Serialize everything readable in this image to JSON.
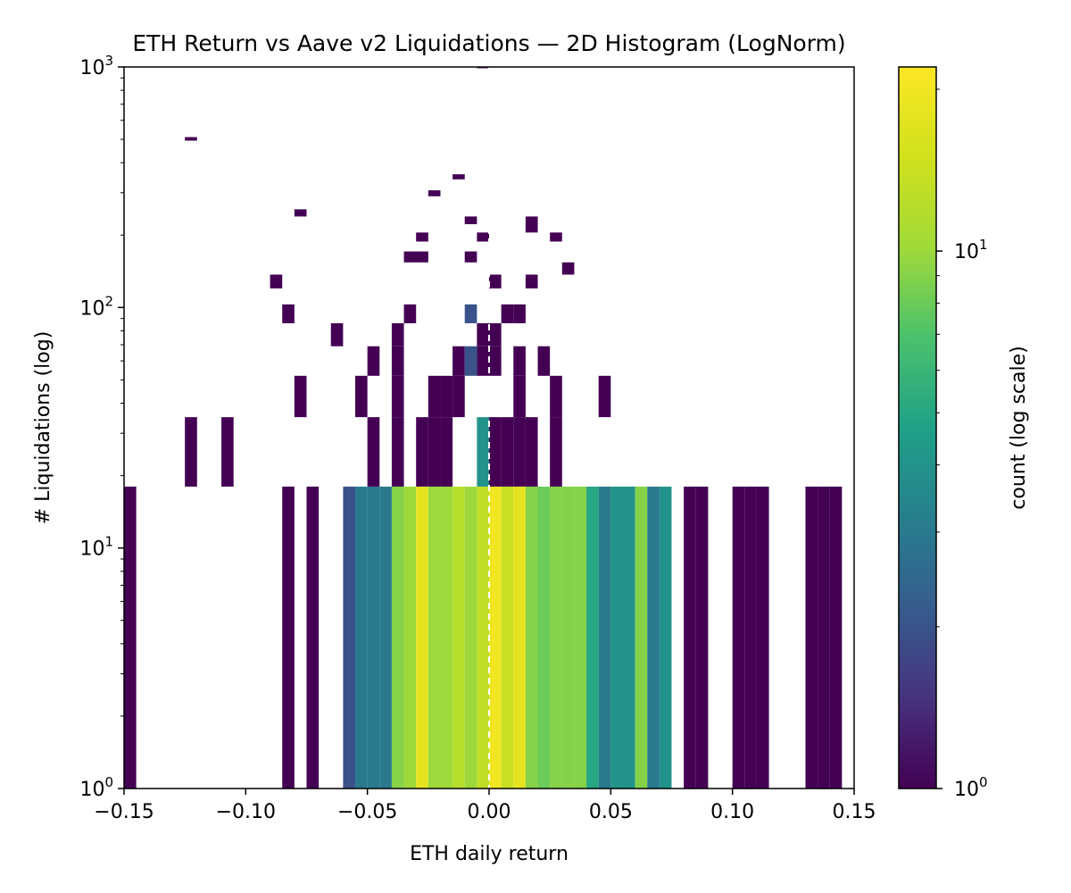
{
  "chart_data": {
    "type": "heatmap",
    "title": "ETH Return vs Aave v2 Liquidations — 2D Histogram (LogNorm)",
    "xlabel": "ETH daily return",
    "ylabel": "# Liquidations (log)",
    "colorbar_label": "count (log scale)",
    "colormap": "viridis",
    "color_scale": "log",
    "color_range": [
      1,
      22
    ],
    "xlim": [
      -0.15,
      0.15
    ],
    "ylim": [
      1,
      1000
    ],
    "y_scale": "log",
    "x_ticks": [
      "−0.15",
      "−0.10",
      "−0.05",
      "0.00",
      "0.05",
      "0.10",
      "0.15"
    ],
    "y_ticks": [
      {
        "base": "10",
        "exp": "0"
      },
      {
        "base": "10",
        "exp": "1"
      },
      {
        "base": "10",
        "exp": "2"
      },
      {
        "base": "10",
        "exp": "3"
      }
    ],
    "colorbar_ticks": [
      {
        "base": "10",
        "exp": "0"
      },
      {
        "base": "10",
        "exp": "1"
      }
    ],
    "reference_line": {
      "x": 0.0,
      "style": "dashed",
      "color": "#ffffff"
    },
    "cells": [
      {
        "x0": -0.15,
        "x1": -0.145,
        "y0": 1,
        "y1": 18,
        "count": 1
      },
      {
        "x0": -0.085,
        "x1": -0.08,
        "y0": 1,
        "y1": 18,
        "count": 1
      },
      {
        "x0": -0.075,
        "x1": -0.07,
        "y0": 1,
        "y1": 18,
        "count": 1
      },
      {
        "x0": -0.06,
        "x1": -0.055,
        "y0": 1,
        "y1": 18,
        "count": 2
      },
      {
        "x0": -0.055,
        "x1": -0.05,
        "y0": 1,
        "y1": 18,
        "count": 3
      },
      {
        "x0": -0.05,
        "x1": -0.045,
        "y0": 1,
        "y1": 18,
        "count": 3
      },
      {
        "x0": -0.045,
        "x1": -0.04,
        "y0": 1,
        "y1": 18,
        "count": 3
      },
      {
        "x0": -0.04,
        "x1": -0.035,
        "y0": 1,
        "y1": 18,
        "count": 9
      },
      {
        "x0": -0.035,
        "x1": -0.03,
        "y0": 1,
        "y1": 18,
        "count": 10
      },
      {
        "x0": -0.03,
        "x1": -0.025,
        "y0": 1,
        "y1": 18,
        "count": 18
      },
      {
        "x0": -0.025,
        "x1": -0.02,
        "y0": 1,
        "y1": 18,
        "count": 10
      },
      {
        "x0": -0.02,
        "x1": -0.015,
        "y0": 1,
        "y1": 18,
        "count": 10
      },
      {
        "x0": -0.015,
        "x1": -0.01,
        "y0": 1,
        "y1": 18,
        "count": 12
      },
      {
        "x0": -0.01,
        "x1": -0.005,
        "y0": 1,
        "y1": 18,
        "count": 10
      },
      {
        "x0": -0.005,
        "x1": 0.0,
        "y0": 1,
        "y1": 18,
        "count": 13
      },
      {
        "x0": 0.0,
        "x1": 0.005,
        "y0": 1,
        "y1": 18,
        "count": 20
      },
      {
        "x0": 0.005,
        "x1": 0.01,
        "y0": 1,
        "y1": 18,
        "count": 14
      },
      {
        "x0": 0.01,
        "x1": 0.015,
        "y0": 1,
        "y1": 18,
        "count": 18
      },
      {
        "x0": 0.015,
        "x1": 0.02,
        "y0": 1,
        "y1": 18,
        "count": 9
      },
      {
        "x0": 0.02,
        "x1": 0.025,
        "y0": 1,
        "y1": 18,
        "count": 8
      },
      {
        "x0": 0.025,
        "x1": 0.03,
        "y0": 1,
        "y1": 18,
        "count": 9
      },
      {
        "x0": 0.03,
        "x1": 0.035,
        "y0": 1,
        "y1": 18,
        "count": 9
      },
      {
        "x0": 0.035,
        "x1": 0.04,
        "y0": 1,
        "y1": 18,
        "count": 9
      },
      {
        "x0": 0.04,
        "x1": 0.045,
        "y0": 1,
        "y1": 18,
        "count": 5
      },
      {
        "x0": 0.045,
        "x1": 0.05,
        "y0": 1,
        "y1": 18,
        "count": 3
      },
      {
        "x0": 0.05,
        "x1": 0.055,
        "y0": 1,
        "y1": 18,
        "count": 4
      },
      {
        "x0": 0.055,
        "x1": 0.06,
        "y0": 1,
        "y1": 18,
        "count": 4
      },
      {
        "x0": 0.06,
        "x1": 0.065,
        "y0": 1,
        "y1": 18,
        "count": 9
      },
      {
        "x0": 0.065,
        "x1": 0.07,
        "y0": 1,
        "y1": 18,
        "count": 3
      },
      {
        "x0": 0.07,
        "x1": 0.075,
        "y0": 1,
        "y1": 18,
        "count": 4
      },
      {
        "x0": 0.08,
        "x1": 0.085,
        "y0": 1,
        "y1": 18,
        "count": 1
      },
      {
        "x0": 0.085,
        "x1": 0.09,
        "y0": 1,
        "y1": 18,
        "count": 1
      },
      {
        "x0": 0.1,
        "x1": 0.105,
        "y0": 1,
        "y1": 18,
        "count": 1
      },
      {
        "x0": 0.105,
        "x1": 0.11,
        "y0": 1,
        "y1": 18,
        "count": 1
      },
      {
        "x0": 0.11,
        "x1": 0.115,
        "y0": 1,
        "y1": 18,
        "count": 1
      },
      {
        "x0": 0.13,
        "x1": 0.135,
        "y0": 1,
        "y1": 18,
        "count": 1
      },
      {
        "x0": 0.135,
        "x1": 0.14,
        "y0": 1,
        "y1": 18,
        "count": 1
      },
      {
        "x0": 0.14,
        "x1": 0.145,
        "y0": 1,
        "y1": 18,
        "count": 1
      },
      {
        "x0": -0.125,
        "x1": -0.12,
        "y0": 18,
        "y1": 35,
        "count": 1
      },
      {
        "x0": -0.11,
        "x1": -0.105,
        "y0": 18,
        "y1": 35,
        "count": 1
      },
      {
        "x0": -0.05,
        "x1": -0.045,
        "y0": 18,
        "y1": 35,
        "count": 1
      },
      {
        "x0": -0.04,
        "x1": -0.035,
        "y0": 18,
        "y1": 35,
        "count": 1
      },
      {
        "x0": -0.03,
        "x1": -0.025,
        "y0": 18,
        "y1": 35,
        "count": 1
      },
      {
        "x0": -0.025,
        "x1": -0.02,
        "y0": 18,
        "y1": 35,
        "count": 1
      },
      {
        "x0": -0.02,
        "x1": -0.015,
        "y0": 18,
        "y1": 35,
        "count": 1
      },
      {
        "x0": -0.005,
        "x1": 0.0,
        "y0": 18,
        "y1": 35,
        "count": 4
      },
      {
        "x0": 0.0,
        "x1": 0.005,
        "y0": 18,
        "y1": 35,
        "count": 1
      },
      {
        "x0": 0.005,
        "x1": 0.01,
        "y0": 18,
        "y1": 35,
        "count": 1
      },
      {
        "x0": 0.01,
        "x1": 0.015,
        "y0": 18,
        "y1": 35,
        "count": 1
      },
      {
        "x0": 0.015,
        "x1": 0.02,
        "y0": 18,
        "y1": 35,
        "count": 1
      },
      {
        "x0": 0.025,
        "x1": 0.03,
        "y0": 18,
        "y1": 35,
        "count": 1
      },
      {
        "x0": -0.08,
        "x1": -0.075,
        "y0": 35,
        "y1": 52,
        "count": 1
      },
      {
        "x0": -0.055,
        "x1": -0.05,
        "y0": 35,
        "y1": 52,
        "count": 1
      },
      {
        "x0": -0.04,
        "x1": -0.035,
        "y0": 35,
        "y1": 52,
        "count": 1
      },
      {
        "x0": -0.025,
        "x1": -0.02,
        "y0": 35,
        "y1": 52,
        "count": 1
      },
      {
        "x0": -0.02,
        "x1": -0.015,
        "y0": 35,
        "y1": 52,
        "count": 1
      },
      {
        "x0": -0.015,
        "x1": -0.01,
        "y0": 35,
        "y1": 52,
        "count": 1
      },
      {
        "x0": 0.01,
        "x1": 0.015,
        "y0": 35,
        "y1": 52,
        "count": 1
      },
      {
        "x0": 0.025,
        "x1": 0.03,
        "y0": 35,
        "y1": 52,
        "count": 1
      },
      {
        "x0": 0.045,
        "x1": 0.05,
        "y0": 35,
        "y1": 52,
        "count": 1
      },
      {
        "x0": -0.05,
        "x1": -0.045,
        "y0": 52,
        "y1": 69,
        "count": 1
      },
      {
        "x0": -0.04,
        "x1": -0.035,
        "y0": 52,
        "y1": 69,
        "count": 1
      },
      {
        "x0": -0.015,
        "x1": -0.01,
        "y0": 52,
        "y1": 69,
        "count": 1
      },
      {
        "x0": -0.01,
        "x1": -0.005,
        "y0": 52,
        "y1": 69,
        "count": 2
      },
      {
        "x0": -0.005,
        "x1": 0.0,
        "y0": 52,
        "y1": 69,
        "count": 1
      },
      {
        "x0": 0.0,
        "x1": 0.005,
        "y0": 52,
        "y1": 69,
        "count": 1
      },
      {
        "x0": 0.01,
        "x1": 0.015,
        "y0": 52,
        "y1": 69,
        "count": 1
      },
      {
        "x0": 0.02,
        "x1": 0.025,
        "y0": 52,
        "y1": 69,
        "count": 1
      },
      {
        "x0": -0.065,
        "x1": -0.06,
        "y0": 69,
        "y1": 86,
        "count": 1
      },
      {
        "x0": -0.04,
        "x1": -0.035,
        "y0": 69,
        "y1": 86,
        "count": 1
      },
      {
        "x0": -0.005,
        "x1": 0.0,
        "y0": 69,
        "y1": 86,
        "count": 1
      },
      {
        "x0": 0.0,
        "x1": 0.005,
        "y0": 69,
        "y1": 86,
        "count": 1
      },
      {
        "x0": -0.085,
        "x1": -0.08,
        "y0": 86,
        "y1": 103,
        "count": 1
      },
      {
        "x0": -0.035,
        "x1": -0.03,
        "y0": 86,
        "y1": 103,
        "count": 1
      },
      {
        "x0": -0.01,
        "x1": -0.005,
        "y0": 86,
        "y1": 103,
        "count": 2
      },
      {
        "x0": 0.005,
        "x1": 0.01,
        "y0": 86,
        "y1": 103,
        "count": 1
      },
      {
        "x0": 0.01,
        "x1": 0.015,
        "y0": 86,
        "y1": 103,
        "count": 1
      },
      {
        "x0": -0.09,
        "x1": -0.085,
        "y0": 120,
        "y1": 137,
        "count": 1
      },
      {
        "x0": 0.0,
        "x1": 0.005,
        "y0": 120,
        "y1": 137,
        "count": 1
      },
      {
        "x0": 0.015,
        "x1": 0.02,
        "y0": 120,
        "y1": 137,
        "count": 1
      },
      {
        "x0": 0.03,
        "x1": 0.035,
        "y0": 137,
        "y1": 154,
        "count": 1
      },
      {
        "x0": -0.035,
        "x1": -0.025,
        "y0": 154,
        "y1": 171,
        "count": 1
      },
      {
        "x0": -0.01,
        "x1": -0.005,
        "y0": 154,
        "y1": 171,
        "count": 1
      },
      {
        "x0": -0.03,
        "x1": -0.025,
        "y0": 188,
        "y1": 205,
        "count": 1
      },
      {
        "x0": -0.005,
        "x1": 0.0,
        "y0": 188,
        "y1": 205,
        "count": 1
      },
      {
        "x0": 0.025,
        "x1": 0.03,
        "y0": 188,
        "y1": 205,
        "count": 1
      },
      {
        "x0": -0.01,
        "x1": -0.005,
        "y0": 222,
        "y1": 239,
        "count": 1
      },
      {
        "x0": 0.015,
        "x1": 0.02,
        "y0": 205,
        "y1": 239,
        "count": 1
      },
      {
        "x0": -0.08,
        "x1": -0.075,
        "y0": 239,
        "y1": 256,
        "count": 1
      },
      {
        "x0": -0.025,
        "x1": -0.02,
        "y0": 290,
        "y1": 307,
        "count": 1
      },
      {
        "x0": -0.015,
        "x1": -0.01,
        "y0": 341,
        "y1": 358,
        "count": 1
      },
      {
        "x0": -0.125,
        "x1": -0.12,
        "y0": 494,
        "y1": 511,
        "count": 1
      },
      {
        "x0": -0.005,
        "x1": 0.0,
        "y0": 988,
        "y1": 1000,
        "count": 1
      }
    ]
  }
}
